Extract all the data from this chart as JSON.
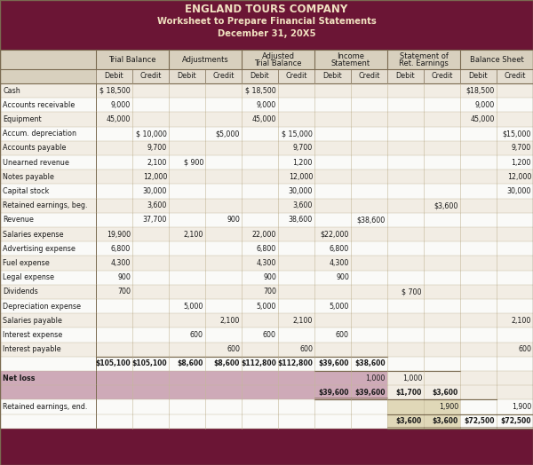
{
  "title_line1": "ENGLAND TOURS COMPANY",
  "title_line2": "Worksheet to Prepare Financial Statements",
  "title_line3": "December 31, 20X5",
  "header_bg": "#6B1535",
  "header_text_color": "#F0E0C0",
  "col_header_bg": "#D8D0BE",
  "col_header2_bg": "#E4DDD0",
  "row_bg_light": "#F2EDE4",
  "row_bg_white": "#FAFAF8",
  "net_loss_bg": "#CEAAB8",
  "ret_end_bg": "#E0D8B8",
  "border_dark": "#7A6A50",
  "border_light": "#C4B89A",
  "text_color": "#1A1A1A",
  "col_groups": [
    "Trial Balance",
    "Adjustments",
    "Adjusted\nTrial Balance",
    "Income\nStatement",
    "Statement of\nRet. Earnings",
    "Balance Sheet"
  ],
  "rows": [
    {
      "label": "Cash",
      "vals": [
        "$ 18,500",
        "",
        "",
        "",
        "$ 18,500",
        "",
        "",
        "",
        "",
        "",
        "$18,500",
        ""
      ]
    },
    {
      "label": "Accounts receivable",
      "vals": [
        "9,000",
        "",
        "",
        "",
        "9,000",
        "",
        "",
        "",
        "",
        "",
        "9,000",
        ""
      ]
    },
    {
      "label": "Equipment",
      "vals": [
        "45,000",
        "",
        "",
        "",
        "45,000",
        "",
        "",
        "",
        "",
        "",
        "45,000",
        ""
      ]
    },
    {
      "label": "Accum. depreciation",
      "vals": [
        "",
        "$ 10,000",
        "",
        "$5,000",
        "",
        "$ 15,000",
        "",
        "",
        "",
        "",
        "",
        "$15,000"
      ]
    },
    {
      "label": "Accounts payable",
      "vals": [
        "",
        "9,700",
        "",
        "",
        "",
        "9,700",
        "",
        "",
        "",
        "",
        "",
        "9,700"
      ]
    },
    {
      "label": "Unearned revenue",
      "vals": [
        "",
        "2,100",
        "$ 900",
        "",
        "",
        "1,200",
        "",
        "",
        "",
        "",
        "",
        "1,200"
      ]
    },
    {
      "label": "Notes payable",
      "vals": [
        "",
        "12,000",
        "",
        "",
        "",
        "12,000",
        "",
        "",
        "",
        "",
        "",
        "12,000"
      ]
    },
    {
      "label": "Capital stock",
      "vals": [
        "",
        "30,000",
        "",
        "",
        "",
        "30,000",
        "",
        "",
        "",
        "",
        "",
        "30,000"
      ]
    },
    {
      "label": "Retained earnings, beg.",
      "vals": [
        "",
        "3,600",
        "",
        "",
        "",
        "3,600",
        "",
        "",
        "",
        "$3,600",
        "",
        ""
      ]
    },
    {
      "label": "Revenue",
      "vals": [
        "",
        "37,700",
        "",
        "900",
        "",
        "38,600",
        "",
        "$38,600",
        "",
        "",
        "",
        ""
      ]
    },
    {
      "label": "Salaries expense",
      "vals": [
        "19,900",
        "",
        "2,100",
        "",
        "22,000",
        "",
        "$22,000",
        "",
        "",
        "",
        "",
        ""
      ]
    },
    {
      "label": "Advertising expense",
      "vals": [
        "6,800",
        "",
        "",
        "",
        "6,800",
        "",
        "6,800",
        "",
        "",
        "",
        "",
        ""
      ]
    },
    {
      "label": "Fuel expense",
      "vals": [
        "4,300",
        "",
        "",
        "",
        "4,300",
        "",
        "4,300",
        "",
        "",
        "",
        "",
        ""
      ]
    },
    {
      "label": "Legal expense",
      "vals": [
        "900",
        "",
        "",
        "",
        "900",
        "",
        "900",
        "",
        "",
        "",
        "",
        ""
      ]
    },
    {
      "label": "Dividends",
      "vals": [
        "700",
        "",
        "",
        "",
        "700",
        "",
        "",
        "",
        "$ 700",
        "",
        "",
        ""
      ]
    },
    {
      "label": "Depreciation expense",
      "vals": [
        "",
        "",
        "5,000",
        "",
        "5,000",
        "",
        "5,000",
        "",
        "",
        "",
        "",
        ""
      ]
    },
    {
      "label": "Salaries payable",
      "vals": [
        "",
        "",
        "",
        "2,100",
        "",
        "2,100",
        "",
        "",
        "",
        "",
        "",
        "2,100"
      ]
    },
    {
      "label": "Interest expense",
      "vals": [
        "",
        "",
        "600",
        "",
        "600",
        "",
        "600",
        "",
        "",
        "",
        "",
        ""
      ]
    },
    {
      "label": "Interest payable",
      "vals": [
        "",
        "",
        "",
        "600",
        "",
        "600",
        "",
        "",
        "",
        "",
        "",
        "600"
      ]
    }
  ],
  "totals": [
    "$105,100",
    "$105,100",
    "$8,600",
    "$8,600",
    "$112,800",
    "$112,800",
    "$39,600",
    "$38,600",
    "",
    "",
    "",
    ""
  ],
  "net_loss_vals": [
    "",
    "",
    "",
    "",
    "",
    "",
    "",
    "1,000",
    "1,000",
    "",
    "",
    ""
  ],
  "nlt_vals": [
    "",
    "",
    "",
    "",
    "",
    "",
    "$39,600",
    "$39,600",
    "$1,700",
    "$3,600",
    "",
    ""
  ],
  "ret_end_vals": [
    "",
    "",
    "",
    "",
    "",
    "",
    "",
    "",
    "",
    "1,900",
    "",
    "1,900"
  ],
  "final_vals": [
    "",
    "",
    "",
    "",
    "",
    "",
    "",
    "",
    "$3,600",
    "$3,600",
    "$72,500",
    "$72,500"
  ]
}
